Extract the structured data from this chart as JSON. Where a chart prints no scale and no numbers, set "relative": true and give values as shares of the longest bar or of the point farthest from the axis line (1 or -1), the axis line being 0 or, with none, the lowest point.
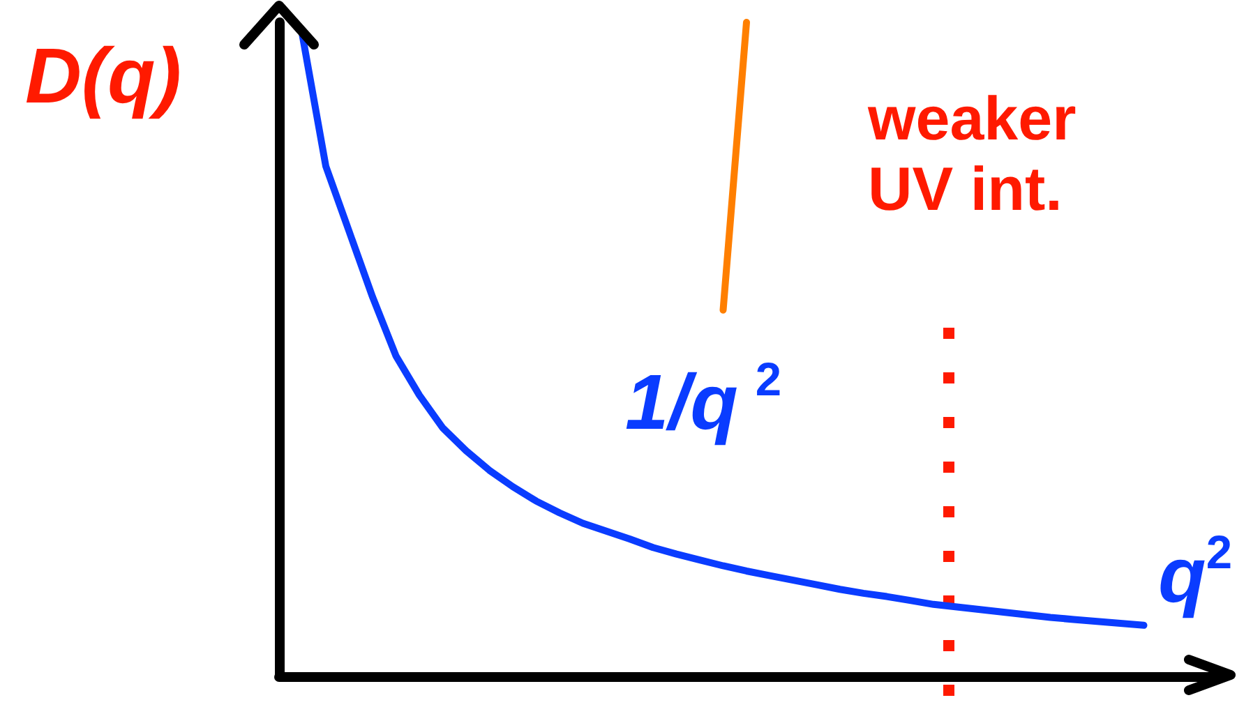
{
  "chart_data": {
    "type": "line",
    "relative": true,
    "xlabel": "q$^{2}$",
    "ylabel": "D(q)",
    "grid": false,
    "marker": "none",
    "line_style": "solid",
    "categories": [
      null,
      null,
      null,
      null,
      null,
      null,
      null,
      null,
      null,
      null,
      null,
      null,
      null,
      null,
      null,
      null,
      null,
      null,
      null,
      null,
      null,
      null,
      null,
      null,
      null,
      null,
      null,
      null,
      null,
      null,
      null,
      null,
      null,
      null,
      null,
      null,
      null,
      null,
      null,
      null,
      null
    ],
    "series": [
      {
        "color": "#0a3cff",
        "values": [
          null,
          0.98,
          0.78,
          0.68,
          0.58,
          0.49,
          0.43,
          0.38,
          0.345,
          0.315,
          0.29,
          0.268,
          0.25,
          0.234,
          0.222,
          0.21,
          0.197,
          0.187,
          0.178,
          0.169,
          0.161,
          0.154,
          0.147,
          0.14,
          0.133,
          0.127,
          0.122,
          0.116,
          0.11,
          0.106,
          0.102,
          0.098,
          0.094,
          0.09,
          0.087,
          0.084,
          0.081,
          0.078,
          null,
          null,
          null
        ]
      },
      {
        "color": "#ff7f00",
        "values": [
          null,
          null,
          null,
          null,
          null,
          null,
          null,
          null,
          null,
          null,
          null,
          null,
          null,
          null,
          null,
          null,
          null,
          null,
          null,
          0.56,
          1,
          null,
          null,
          null,
          null,
          null,
          null,
          null,
          null,
          null,
          null,
          null,
          null,
          null,
          null,
          null,
          null,
          null,
          null,
          null,
          null
        ]
      }
    ],
    "annotations": [
      "weaker UV int.",
      "1/q$^{2}$"
    ]
  }
}
